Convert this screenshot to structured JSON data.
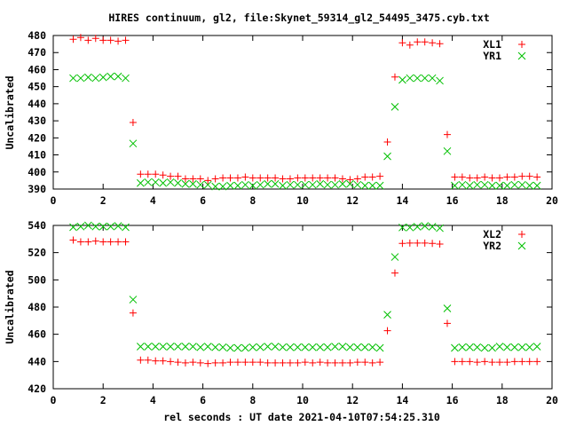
{
  "chart_data": [
    {
      "type": "scatter",
      "title": "HIRES continuum, gl2, file:Skynet_59314_gl2_54495_3475.cyb.txt",
      "xlabel": "",
      "ylabel": "Uncalibrated",
      "xlim": [
        0,
        20
      ],
      "ylim": [
        390,
        480
      ],
      "xticks": [
        0,
        2,
        4,
        6,
        8,
        10,
        12,
        14,
        16,
        18,
        20
      ],
      "yticks": [
        390,
        400,
        410,
        420,
        430,
        440,
        450,
        460,
        470,
        480
      ],
      "grid": false,
      "legend_position": "top-right",
      "x": [
        0.8,
        1.1,
        1.4,
        1.7,
        2.0,
        2.3,
        2.6,
        2.9,
        3.2,
        3.5,
        3.8,
        4.1,
        4.4,
        4.7,
        5.0,
        5.3,
        5.6,
        5.9,
        6.2,
        6.5,
        6.8,
        7.1,
        7.4,
        7.7,
        8.0,
        8.3,
        8.6,
        8.9,
        9.2,
        9.5,
        9.8,
        10.1,
        10.4,
        10.7,
        11.0,
        11.3,
        11.6,
        11.9,
        12.2,
        12.5,
        12.8,
        13.1,
        13.4,
        13.7,
        14.0,
        14.3,
        14.6,
        14.9,
        15.2,
        15.5,
        15.8,
        16.1,
        16.4,
        16.7,
        17.0,
        17.3,
        17.6,
        17.9,
        18.2,
        18.5,
        18.8,
        19.1,
        19.4
      ],
      "series": [
        {
          "name": "XL1",
          "marker": "plus",
          "color": "#ff0000",
          "values": [
            477.8,
            478.8,
            477.2,
            478.3,
            477.2,
            477.2,
            476.7,
            477.2,
            429,
            398.7,
            398.7,
            398.7,
            398.2,
            397.5,
            397.5,
            396,
            396,
            396,
            395,
            396,
            396.5,
            396.5,
            396.5,
            397,
            396.5,
            396.5,
            396.5,
            396.5,
            396,
            396,
            396.5,
            396.5,
            396.5,
            396.5,
            396.5,
            396.5,
            396,
            395.5,
            396,
            397,
            397,
            397.5,
            417.6,
            455.7,
            475.7,
            474.4,
            476.2,
            476.2,
            475.7,
            475.2,
            421.9,
            397,
            397,
            396.5,
            396.5,
            397,
            396.5,
            396.5,
            397,
            397,
            397.5,
            397.5,
            397
          ]
        },
        {
          "name": "YR1",
          "marker": "cross",
          "color": "#00c000",
          "values": [
            455,
            455,
            455.5,
            455,
            455.5,
            456,
            456,
            455,
            416.7,
            393.5,
            394,
            394,
            393.5,
            394,
            393.5,
            393,
            393,
            392.5,
            392.5,
            391.5,
            391.5,
            392,
            392,
            392.5,
            392,
            392.5,
            393,
            393,
            392,
            392.5,
            392.5,
            392.5,
            392.5,
            393,
            392.5,
            392.5,
            393,
            393,
            392.5,
            392,
            392,
            392,
            409.2,
            438.2,
            454,
            455,
            455,
            455,
            455,
            453.5,
            412.2,
            392,
            392.5,
            392,
            392.5,
            392.5,
            392,
            392,
            392,
            392.5,
            392.5,
            392,
            392
          ]
        }
      ]
    },
    {
      "type": "scatter",
      "xlabel": "rel seconds : UT date 2021-04-10T07:54:25.310",
      "ylabel": "Uncalibrated",
      "xlim": [
        0,
        20
      ],
      "ylim": [
        420,
        540
      ],
      "xticks": [
        0,
        2,
        4,
        6,
        8,
        10,
        12,
        14,
        16,
        18,
        20
      ],
      "yticks": [
        420,
        440,
        460,
        480,
        500,
        520,
        540
      ],
      "grid": false,
      "legend_position": "top-right",
      "x": [
        0.8,
        1.1,
        1.4,
        1.7,
        2.0,
        2.3,
        2.6,
        2.9,
        3.2,
        3.5,
        3.8,
        4.1,
        4.4,
        4.7,
        5.0,
        5.3,
        5.6,
        5.9,
        6.2,
        6.5,
        6.8,
        7.1,
        7.4,
        7.7,
        8.0,
        8.3,
        8.6,
        8.9,
        9.2,
        9.5,
        9.8,
        10.1,
        10.4,
        10.7,
        11.0,
        11.3,
        11.6,
        11.9,
        12.2,
        12.5,
        12.8,
        13.1,
        13.4,
        13.7,
        14.0,
        14.3,
        14.6,
        14.9,
        15.2,
        15.5,
        15.8,
        16.1,
        16.4,
        16.7,
        17.0,
        17.3,
        17.6,
        17.9,
        18.2,
        18.5,
        18.8,
        19.1,
        19.4
      ],
      "series": [
        {
          "name": "XL2",
          "marker": "plus",
          "color": "#ff0000",
          "values": [
            529.2,
            527.9,
            527.9,
            528.5,
            527.9,
            527.9,
            527.9,
            527.9,
            475.7,
            441,
            441,
            440.5,
            440.5,
            440,
            439.5,
            439,
            439.5,
            439,
            438.5,
            439,
            439,
            439.5,
            439.5,
            439.5,
            439.5,
            439.5,
            439,
            439,
            439,
            439,
            439,
            439.5,
            439,
            439.5,
            439,
            439,
            439,
            439,
            439.5,
            439.5,
            439,
            439.5,
            462.6,
            505,
            526.8,
            527,
            527,
            527,
            526.8,
            526.3,
            468,
            440,
            440,
            440,
            439.5,
            440,
            439.5,
            439.5,
            439.5,
            440,
            440,
            440,
            440
          ]
        },
        {
          "name": "YR2",
          "marker": "cross",
          "color": "#00c000",
          "values": [
            538.7,
            539.2,
            540,
            539.2,
            539.2,
            539.2,
            539.6,
            538.7,
            485.5,
            451,
            451,
            451,
            451,
            451,
            451,
            451,
            451,
            450.5,
            451,
            450.5,
            450.5,
            450,
            450,
            450,
            450.5,
            450.5,
            451,
            451,
            450.5,
            450.5,
            450.5,
            450.5,
            450.5,
            450.5,
            450.5,
            451,
            451,
            450.5,
            450.5,
            450.5,
            450.5,
            450,
            474.4,
            516.8,
            538.5,
            538.5,
            539,
            539.6,
            539,
            538,
            479,
            450,
            450.5,
            450.5,
            450.5,
            450,
            450,
            451,
            450.5,
            450.5,
            450.5,
            450.5,
            451
          ]
        }
      ]
    }
  ]
}
